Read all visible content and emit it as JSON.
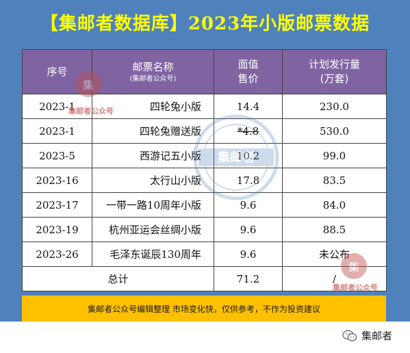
{
  "title": "【集邮者数据库】2023年小版邮票数据",
  "table": {
    "headers": {
      "col1": "序号",
      "col2": "邮票名称",
      "col2_sub": "(集邮者公众号)",
      "col3_line1": "面值",
      "col3_line2": "售价",
      "col4_line1": "计划发行量",
      "col4_line2": "(万套)"
    },
    "rows": [
      {
        "id": "2023-1",
        "name": "四轮兔小版",
        "price": "14.4",
        "qty": "230.0",
        "price_struck": false
      },
      {
        "id": "2023-1",
        "name": "四轮兔赠送版",
        "price": "*4.8",
        "qty": "530.0",
        "price_struck": true
      },
      {
        "id": "2023-5",
        "name": "西游记五小版",
        "price": "10.2",
        "qty": "99.0",
        "price_struck": false
      },
      {
        "id": "2023-16",
        "name": "太行山小版",
        "price": "17.8",
        "qty": "83.5",
        "price_struck": false
      },
      {
        "id": "2023-17",
        "name": "一带一路10周年小版",
        "price": "9.6",
        "qty": "84.0",
        "price_struck": false
      },
      {
        "id": "2023-19",
        "name": "杭州亚运会丝绸小版",
        "price": "9.6",
        "qty": "88.5",
        "price_struck": false
      },
      {
        "id": "2023-26",
        "name": "毛泽东诞辰130周年",
        "price": "9.6",
        "qty": "未公布",
        "price_struck": false
      }
    ],
    "total": {
      "label": "总计",
      "price": "71.2",
      "qty": "/"
    }
  },
  "footer": "集邮者公众号编辑整理 市场变化快，仅供参考，不作为投资建议",
  "watermark_text": "集邮者",
  "seal_char": "集",
  "seal_label": "集邮者公众号",
  "brand": "集邮者",
  "colors": {
    "background_panel": "#4f81bd",
    "title": "#ffff00",
    "header_fill": "#8064a2",
    "footer_fill": "#ffc000"
  }
}
